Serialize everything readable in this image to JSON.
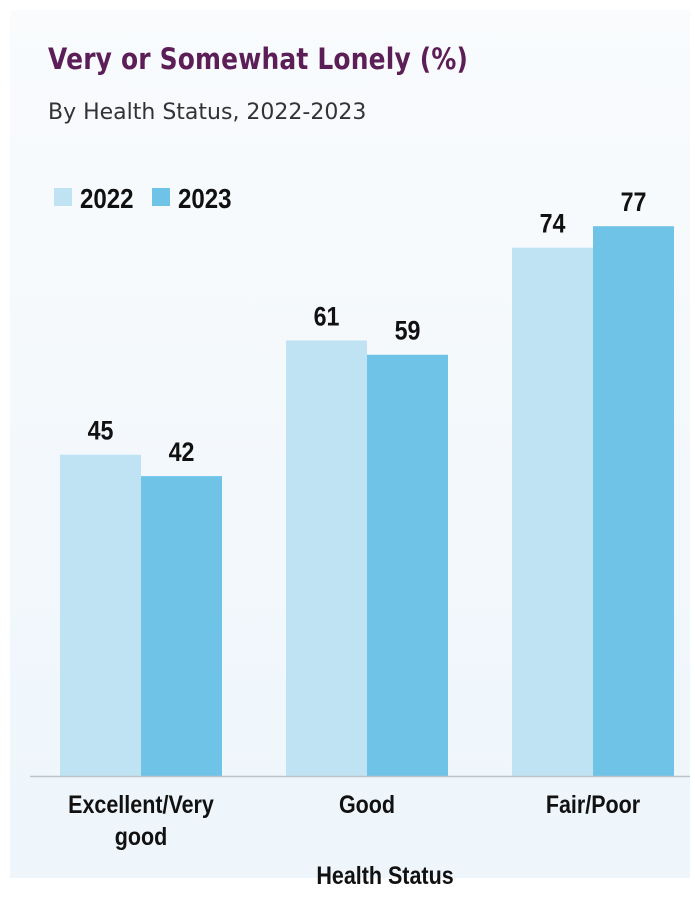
{
  "colors": {
    "s2022": "#bfe3f3",
    "s2023": "#6ec3e7",
    "title": "#5b1e57",
    "axis": "#b9c3ca",
    "text": "#111111"
  },
  "chart_data": {
    "type": "bar",
    "title": "Very or Somewhat Lonely (%)",
    "subtitle": "By Health Status, 2022-2023",
    "xlabel": "Health Status",
    "ylabel": "",
    "categories": [
      "Excellent/Very good",
      "Good",
      "Fair/Poor"
    ],
    "category_lines": [
      [
        "Excellent/Very",
        "good"
      ],
      [
        "Good"
      ],
      [
        "Fair/Poor"
      ]
    ],
    "series": [
      {
        "name": "2022",
        "values": [
          45,
          61,
          74
        ]
      },
      {
        "name": "2023",
        "values": [
          42,
          59,
          77
        ]
      }
    ],
    "ylim": [
      0,
      100
    ],
    "grid": false,
    "legend": "top-left"
  }
}
